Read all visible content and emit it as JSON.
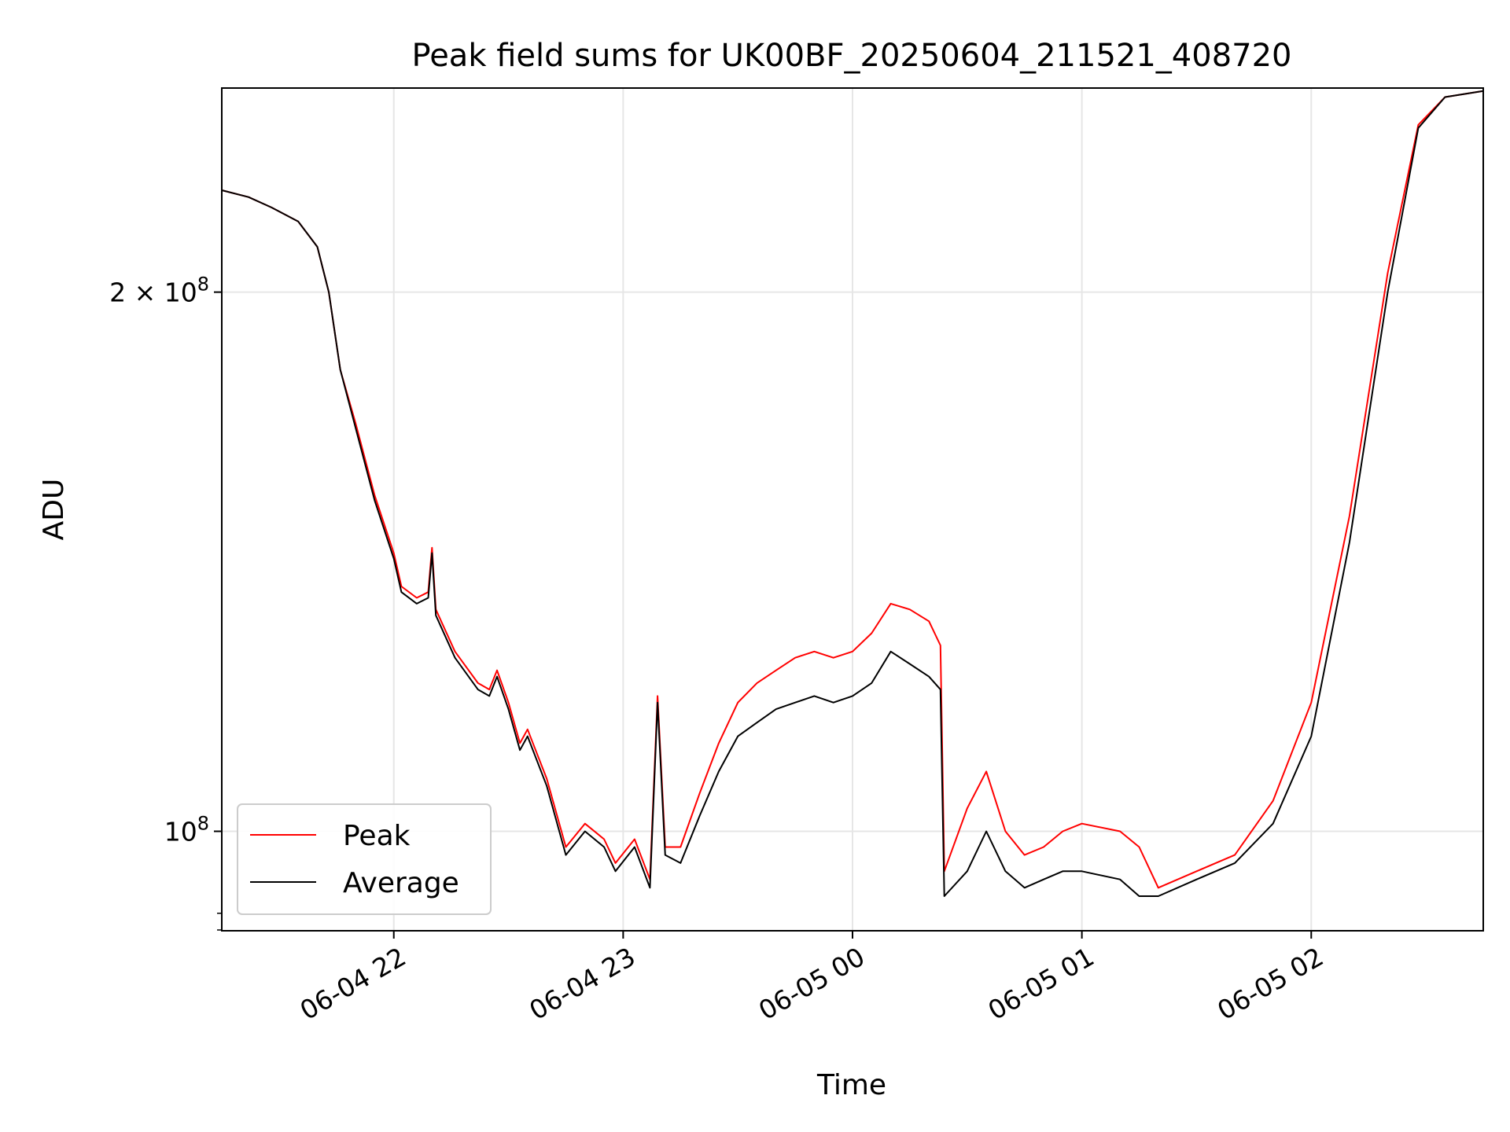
{
  "chart_data": {
    "type": "line",
    "title": "Peak field sums for UK00BF_20250604_211521_408720",
    "xlabel": "Time",
    "ylabel": "ADU",
    "y_scale": "log",
    "ylim": [
      88000000,
      260000000
    ],
    "xlim": [
      "2025-06-04 21:15",
      "2025-06-05 02:45"
    ],
    "grid": true,
    "legend_position": "lower-left",
    "x_ticks": [
      {
        "t": "2025-06-04 22:00",
        "label": "06-04 22"
      },
      {
        "t": "2025-06-04 23:00",
        "label": "06-04 23"
      },
      {
        "t": "2025-06-05 00:00",
        "label": "06-05 00"
      },
      {
        "t": "2025-06-05 01:00",
        "label": "06-05 01"
      },
      {
        "t": "2025-06-05 02:00",
        "label": "06-05 02"
      }
    ],
    "y_ticks": [
      {
        "value": 100000000,
        "label_base": "10",
        "label_exp": "8"
      },
      {
        "value": 200000000,
        "label_base": "2 × 10",
        "label_exp": "8"
      }
    ],
    "series": [
      {
        "name": "Peak",
        "color": "#ff0000",
        "points": [
          [
            "2025-06-04 21:15",
            228000000
          ],
          [
            "2025-06-04 21:22",
            226000000
          ],
          [
            "2025-06-04 21:28",
            223000000
          ],
          [
            "2025-06-04 21:35",
            219000000
          ],
          [
            "2025-06-04 21:40",
            212000000
          ],
          [
            "2025-06-04 21:43",
            200000000
          ],
          [
            "2025-06-04 21:46",
            181000000
          ],
          [
            "2025-06-04 21:50",
            169000000
          ],
          [
            "2025-06-04 21:55",
            154000000
          ],
          [
            "2025-06-04 22:00",
            143000000
          ],
          [
            "2025-06-04 22:02",
            137000000
          ],
          [
            "2025-06-04 22:06",
            135000000
          ],
          [
            "2025-06-04 22:09",
            136000000
          ],
          [
            "2025-06-04 22:10",
            144000000
          ],
          [
            "2025-06-04 22:11",
            133000000
          ],
          [
            "2025-06-04 22:16",
            126000000
          ],
          [
            "2025-06-04 22:22",
            121000000
          ],
          [
            "2025-06-04 22:25",
            120000000
          ],
          [
            "2025-06-04 22:27",
            123000000
          ],
          [
            "2025-06-04 22:30",
            118000000
          ],
          [
            "2025-06-04 22:33",
            112000000
          ],
          [
            "2025-06-04 22:35",
            114000000
          ],
          [
            "2025-06-04 22:40",
            107000000
          ],
          [
            "2025-06-04 22:45",
            98000000
          ],
          [
            "2025-06-04 22:50",
            101000000
          ],
          [
            "2025-06-04 22:55",
            99000000
          ],
          [
            "2025-06-04 22:58",
            96000000
          ],
          [
            "2025-06-04 23:03",
            99000000
          ],
          [
            "2025-06-04 23:07",
            94000000
          ],
          [
            "2025-06-04 23:09",
            119000000
          ],
          [
            "2025-06-04 23:11",
            98000000
          ],
          [
            "2025-06-04 23:15",
            98000000
          ],
          [
            "2025-06-04 23:20",
            105000000
          ],
          [
            "2025-06-04 23:25",
            112000000
          ],
          [
            "2025-06-04 23:30",
            118000000
          ],
          [
            "2025-06-04 23:35",
            121000000
          ],
          [
            "2025-06-04 23:40",
            123000000
          ],
          [
            "2025-06-04 23:45",
            125000000
          ],
          [
            "2025-06-04 23:50",
            126000000
          ],
          [
            "2025-06-04 23:55",
            125000000
          ],
          [
            "2025-06-05 00:00",
            126000000
          ],
          [
            "2025-06-05 00:05",
            129000000
          ],
          [
            "2025-06-05 00:10",
            134000000
          ],
          [
            "2025-06-05 00:15",
            133000000
          ],
          [
            "2025-06-05 00:20",
            131000000
          ],
          [
            "2025-06-05 00:23",
            127000000
          ],
          [
            "2025-06-05 00:24",
            95000000
          ],
          [
            "2025-06-05 00:30",
            103000000
          ],
          [
            "2025-06-05 00:35",
            108000000
          ],
          [
            "2025-06-05 00:40",
            100000000
          ],
          [
            "2025-06-05 00:45",
            97000000
          ],
          [
            "2025-06-05 00:50",
            98000000
          ],
          [
            "2025-06-05 00:55",
            100000000
          ],
          [
            "2025-06-05 01:00",
            101000000
          ],
          [
            "2025-06-05 01:10",
            100000000
          ],
          [
            "2025-06-05 01:15",
            98000000
          ],
          [
            "2025-06-05 01:20",
            93000000
          ],
          [
            "2025-06-05 01:30",
            95000000
          ],
          [
            "2025-06-05 01:40",
            97000000
          ],
          [
            "2025-06-05 01:50",
            104000000
          ],
          [
            "2025-06-05 02:00",
            118000000
          ],
          [
            "2025-06-05 02:10",
            150000000
          ],
          [
            "2025-06-05 02:20",
            205000000
          ],
          [
            "2025-06-05 02:28",
            248000000
          ],
          [
            "2025-06-05 02:35",
            257000000
          ],
          [
            "2025-06-05 02:45",
            259000000
          ]
        ]
      },
      {
        "name": "Average",
        "color": "#000000",
        "points": [
          [
            "2025-06-04 21:15",
            228000000
          ],
          [
            "2025-06-04 21:22",
            226000000
          ],
          [
            "2025-06-04 21:28",
            223000000
          ],
          [
            "2025-06-04 21:35",
            219000000
          ],
          [
            "2025-06-04 21:40",
            212000000
          ],
          [
            "2025-06-04 21:43",
            200000000
          ],
          [
            "2025-06-04 21:46",
            181000000
          ],
          [
            "2025-06-04 21:50",
            168000000
          ],
          [
            "2025-06-04 21:55",
            153000000
          ],
          [
            "2025-06-04 22:00",
            142000000
          ],
          [
            "2025-06-04 22:02",
            136000000
          ],
          [
            "2025-06-04 22:06",
            134000000
          ],
          [
            "2025-06-04 22:09",
            135000000
          ],
          [
            "2025-06-04 22:10",
            143000000
          ],
          [
            "2025-06-04 22:11",
            132000000
          ],
          [
            "2025-06-04 22:16",
            125000000
          ],
          [
            "2025-06-04 22:22",
            120000000
          ],
          [
            "2025-06-04 22:25",
            119000000
          ],
          [
            "2025-06-04 22:27",
            122000000
          ],
          [
            "2025-06-04 22:30",
            117000000
          ],
          [
            "2025-06-04 22:33",
            111000000
          ],
          [
            "2025-06-04 22:35",
            113000000
          ],
          [
            "2025-06-04 22:40",
            106000000
          ],
          [
            "2025-06-04 22:45",
            97000000
          ],
          [
            "2025-06-04 22:50",
            100000000
          ],
          [
            "2025-06-04 22:55",
            98000000
          ],
          [
            "2025-06-04 22:58",
            95000000
          ],
          [
            "2025-06-04 23:03",
            98000000
          ],
          [
            "2025-06-04 23:07",
            93000000
          ],
          [
            "2025-06-04 23:09",
            118000000
          ],
          [
            "2025-06-04 23:11",
            97000000
          ],
          [
            "2025-06-04 23:15",
            96000000
          ],
          [
            "2025-06-04 23:20",
            102000000
          ],
          [
            "2025-06-04 23:25",
            108000000
          ],
          [
            "2025-06-04 23:30",
            113000000
          ],
          [
            "2025-06-04 23:35",
            115000000
          ],
          [
            "2025-06-04 23:40",
            117000000
          ],
          [
            "2025-06-04 23:45",
            118000000
          ],
          [
            "2025-06-04 23:50",
            119000000
          ],
          [
            "2025-06-04 23:55",
            118000000
          ],
          [
            "2025-06-05 00:00",
            119000000
          ],
          [
            "2025-06-05 00:05",
            121000000
          ],
          [
            "2025-06-05 00:10",
            126000000
          ],
          [
            "2025-06-05 00:15",
            124000000
          ],
          [
            "2025-06-05 00:20",
            122000000
          ],
          [
            "2025-06-05 00:23",
            120000000
          ],
          [
            "2025-06-05 00:24",
            92000000
          ],
          [
            "2025-06-05 00:30",
            95000000
          ],
          [
            "2025-06-05 00:35",
            100000000
          ],
          [
            "2025-06-05 00:40",
            95000000
          ],
          [
            "2025-06-05 00:45",
            93000000
          ],
          [
            "2025-06-05 00:50",
            94000000
          ],
          [
            "2025-06-05 00:55",
            95000000
          ],
          [
            "2025-06-05 01:00",
            95000000
          ],
          [
            "2025-06-05 01:10",
            94000000
          ],
          [
            "2025-06-05 01:15",
            92000000
          ],
          [
            "2025-06-05 01:20",
            92000000
          ],
          [
            "2025-06-05 01:30",
            94000000
          ],
          [
            "2025-06-05 01:40",
            96000000
          ],
          [
            "2025-06-05 01:50",
            101000000
          ],
          [
            "2025-06-05 02:00",
            113000000
          ],
          [
            "2025-06-05 02:10",
            145000000
          ],
          [
            "2025-06-05 02:20",
            200000000
          ],
          [
            "2025-06-05 02:28",
            247000000
          ],
          [
            "2025-06-05 02:35",
            257000000
          ],
          [
            "2025-06-05 02:45",
            259000000
          ]
        ]
      }
    ]
  }
}
